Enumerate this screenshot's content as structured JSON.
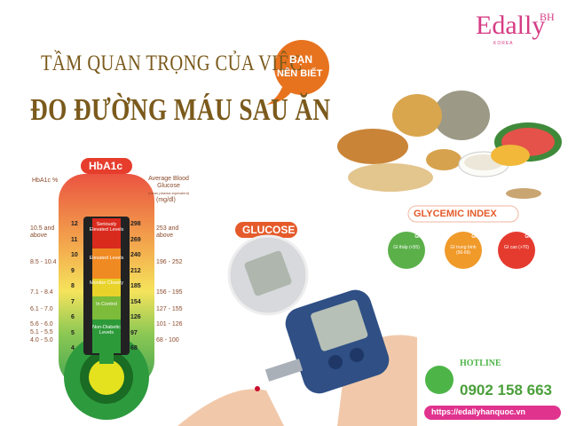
{
  "brand": {
    "name": "Edally",
    "tag": "BH",
    "sub": "KOREA"
  },
  "title": {
    "line1": "TẦM QUAN TRỌNG CỦA VIỆC",
    "line2": "ĐO ĐƯỜNG MÁU SAU ĂN"
  },
  "badge": {
    "line1": "BẠN",
    "line2": "NÊN BIẾT"
  },
  "thermometer": {
    "title": "HbA1c",
    "left_header": "HbA1c %",
    "right_header": "Average Blood Glucose",
    "right_note": "(mean plasma equivalent)",
    "right_unit": "(mg/dl)",
    "hba1c_scale": [
      12,
      11,
      10,
      9,
      8,
      7,
      6,
      5,
      4
    ],
    "glucose_scale": [
      298,
      269,
      240,
      212,
      185,
      154,
      126,
      97,
      68
    ],
    "zones": [
      "Seriously Elevated Levels",
      "Elevated Levels",
      "Monitor Closely",
      "In Control",
      "Non-Diabetic Levels"
    ],
    "hba1c_ranges": [
      "10.5 and above",
      "8.5 - 10.4",
      "7.1 - 8.4",
      "6.1 - 7.0",
      "5.6 - 6.0",
      "5.1 - 5.5",
      "4.0 - 5.0"
    ],
    "glucose_ranges": [
      "253 and above",
      "196 - 252",
      "156 - 195",
      "127 - 155",
      "101 - 126",
      "68 - 100"
    ]
  },
  "glucose_label": "GLUCOSE",
  "glycemic": {
    "title": "GLYCEMIC INDEX",
    "levels": [
      {
        "tag": "GI",
        "label": "GI thấp (<55)"
      },
      {
        "tag": "GI",
        "label": "GI trung bình (56-69)"
      },
      {
        "tag": "GI",
        "label": "GI cao (>70)"
      }
    ]
  },
  "contact": {
    "hotline": "HOTLINE",
    "phone": "0902 158 663",
    "url": "https://edallyhanquoc.vn"
  }
}
